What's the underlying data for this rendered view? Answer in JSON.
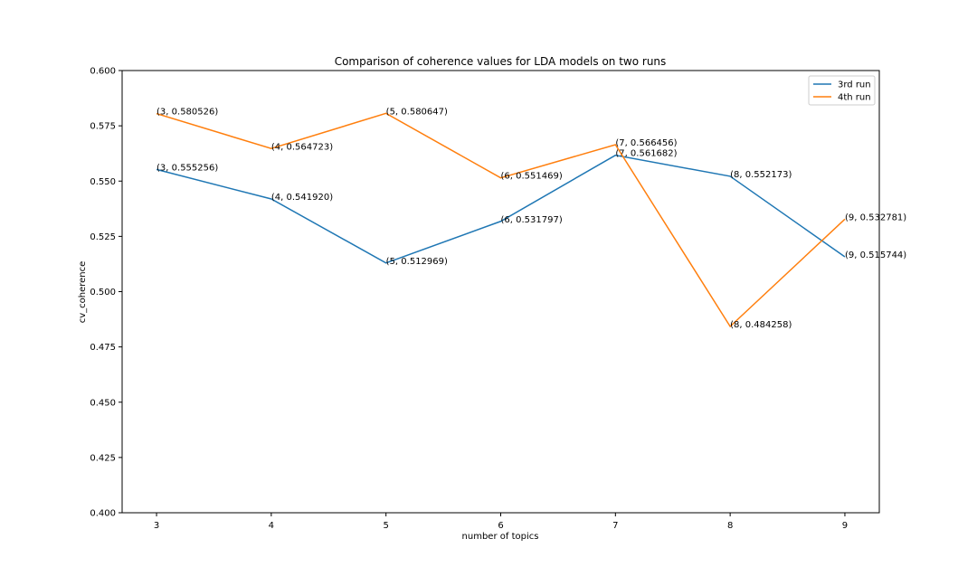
{
  "chart_data": {
    "type": "line",
    "title": "Comparison of coherence values for LDA models on two runs",
    "xlabel": "number of topics",
    "ylabel": "cv_coherence",
    "x": [
      3,
      4,
      5,
      6,
      7,
      8,
      9
    ],
    "xlim": [
      2.7,
      9.3
    ],
    "ylim": [
      0.4,
      0.6
    ],
    "x_ticks": [
      "3",
      "4",
      "5",
      "6",
      "7",
      "8",
      "9"
    ],
    "y_ticks": [
      "0.400",
      "0.425",
      "0.450",
      "0.475",
      "0.500",
      "0.525",
      "0.550",
      "0.575",
      "0.600"
    ],
    "grid": false,
    "legend_position": "top-right",
    "series": [
      {
        "name": "3rd run",
        "color": "#1f77b4",
        "values": [
          0.555256,
          0.54192,
          0.512969,
          0.531797,
          0.561682,
          0.552173,
          0.515744
        ],
        "labels": [
          "(3, 0.555256)",
          "(4, 0.541920)",
          "(5, 0.512969)",
          "(6, 0.531797)",
          "(7, 0.561682)",
          "(8, 0.552173)",
          "(9, 0.515744)"
        ]
      },
      {
        "name": "4th run",
        "color": "#ff7f0e",
        "values": [
          0.580526,
          0.564723,
          0.580647,
          0.551469,
          0.566456,
          0.484258,
          0.532781
        ],
        "labels": [
          "(3, 0.580526)",
          "(4, 0.564723)",
          "(5, 0.580647)",
          "(6, 0.551469)",
          "(7, 0.566456)",
          "(8, 0.484258)",
          "(9, 0.532781)"
        ]
      }
    ]
  }
}
